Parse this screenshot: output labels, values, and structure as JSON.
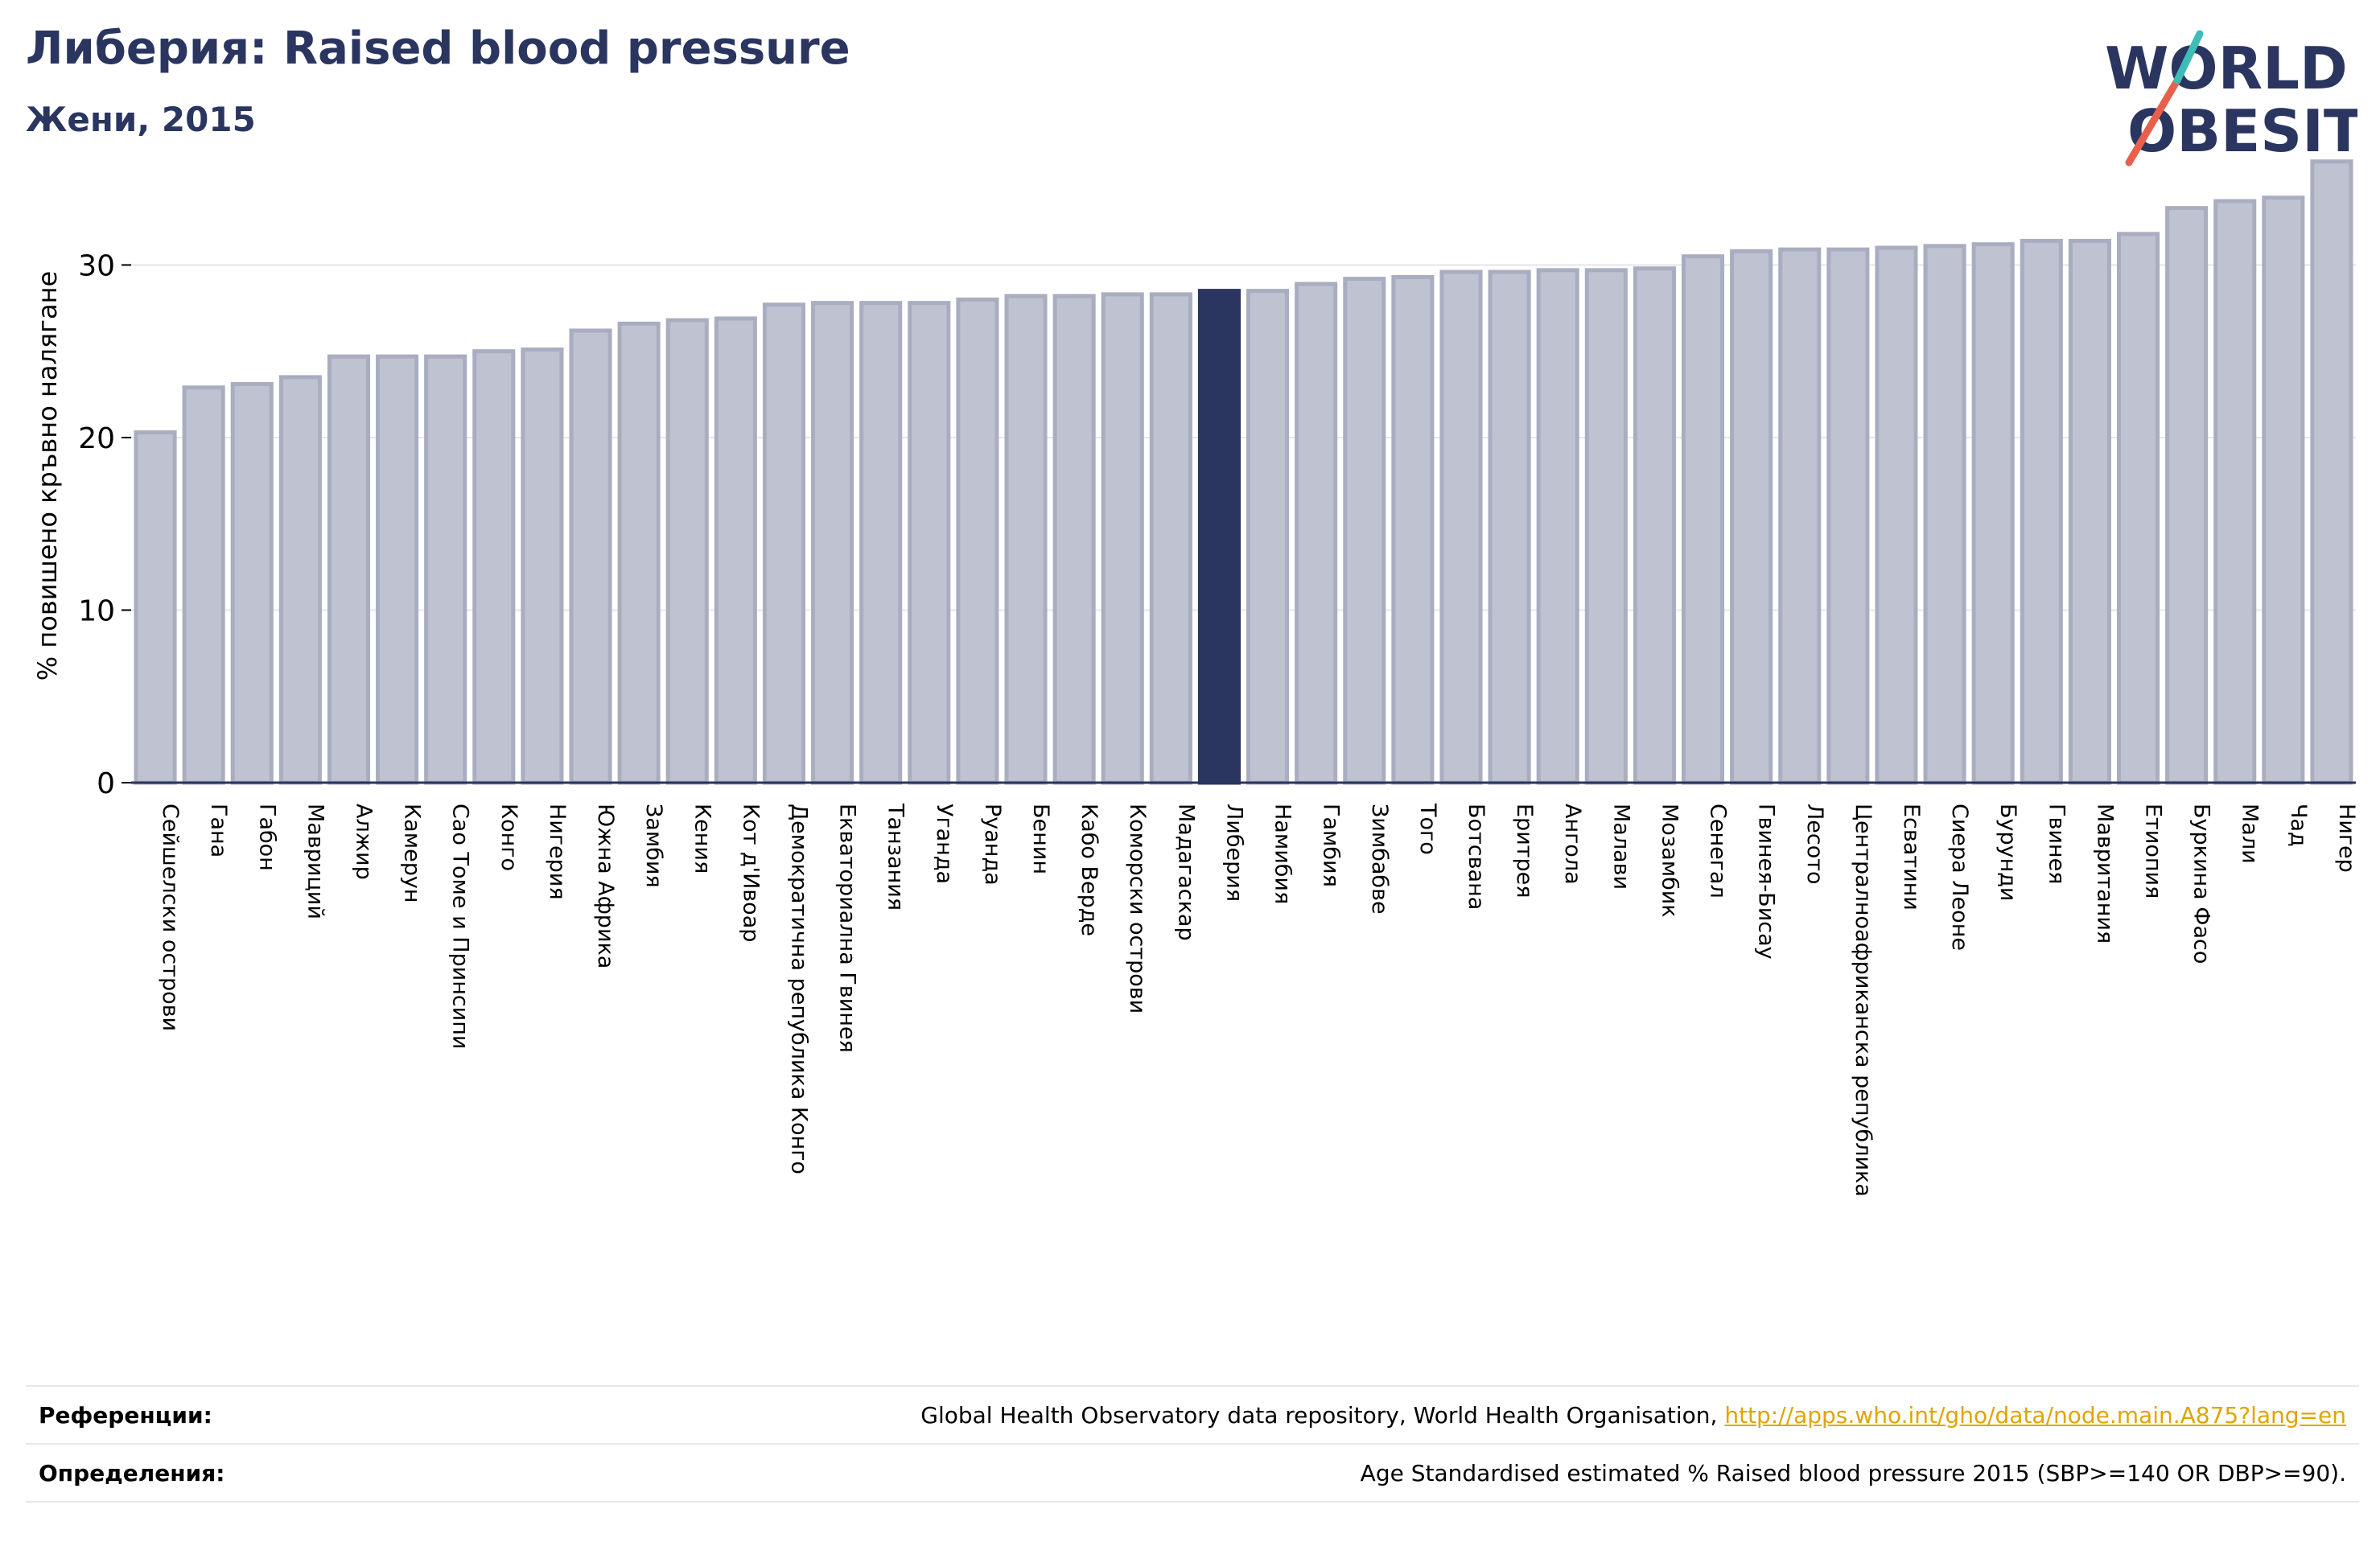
{
  "header": {
    "title": "Либерия: Raised blood pressure",
    "subtitle": "Жени, 2015"
  },
  "logo": {
    "line1": "WORLD",
    "line2": "OBESITY",
    "colors": {
      "text": "#2a3560",
      "slash_red": "#e8604c",
      "slash_teal": "#3dbdb8"
    }
  },
  "colors": {
    "bar": "#bfc2d0",
    "bar_edge": "#a9adc0",
    "highlight": "#2a3560",
    "grid": "#e6e6ea",
    "axis": "#2a3560"
  },
  "chart_data": {
    "type": "bar",
    "title": "Либерия: Raised blood pressure",
    "subtitle": "Жени, 2015",
    "xlabel": "",
    "ylabel": "% повишено кръвно налягане",
    "ylim": [
      0,
      36.5
    ],
    "yticks": [
      0,
      10,
      20,
      30
    ],
    "grid": true,
    "highlight": "Либерия",
    "categories": [
      "Сейшелски острови",
      "Гана",
      "Габон",
      "Мавриций",
      "Алжир",
      "Камерун",
      "Сао Томе и Принсипи",
      "Конго",
      "Нигерия",
      "Южна Африка",
      "Замбия",
      "Кения",
      "Кот д'Ивоар",
      "Демократична република Конго",
      "Екваториална Гвинея",
      "Танзания",
      "Уганда",
      "Руанда",
      "Бенин",
      "Кабо Верде",
      "Коморски острови",
      "Мадагаскар",
      "Либерия",
      "Намибия",
      "Гамбия",
      "Зимбабве",
      "Того",
      "Ботсвана",
      "Еритрея",
      "Ангола",
      "Малави",
      "Мозамбик",
      "Сенегал",
      "Гвинея-Бисау",
      "Лесото",
      "Централноафриканска република",
      "Есватини",
      "Сиера Леоне",
      "Бурунди",
      "Гвинея",
      "Мавритания",
      "Етиопия",
      "Буркина Фасо",
      "Мали",
      "Чад",
      "Нигер"
    ],
    "values": [
      20.3,
      22.9,
      23.1,
      23.5,
      24.7,
      24.7,
      24.7,
      25.0,
      25.1,
      26.2,
      26.6,
      26.8,
      26.9,
      27.7,
      27.8,
      27.8,
      27.8,
      28.0,
      28.2,
      28.2,
      28.3,
      28.3,
      28.5,
      28.5,
      28.9,
      29.2,
      29.3,
      29.6,
      29.6,
      29.7,
      29.7,
      29.8,
      30.5,
      30.8,
      30.9,
      30.9,
      31.0,
      31.1,
      31.2,
      31.4,
      31.4,
      31.8,
      33.3,
      33.7,
      33.9,
      36.0
    ]
  },
  "footer": {
    "references_label": "Референции:",
    "references_text": "Global Health Observatory data repository, World Health Organisation, ",
    "references_link": "http://apps.who.int/gho/data/node.main.A875?lang=en",
    "definitions_label": "Определения:",
    "definitions_text": "Age Standardised estimated % Raised blood pressure 2015 (SBP>=140 OR DBP>=90)."
  }
}
